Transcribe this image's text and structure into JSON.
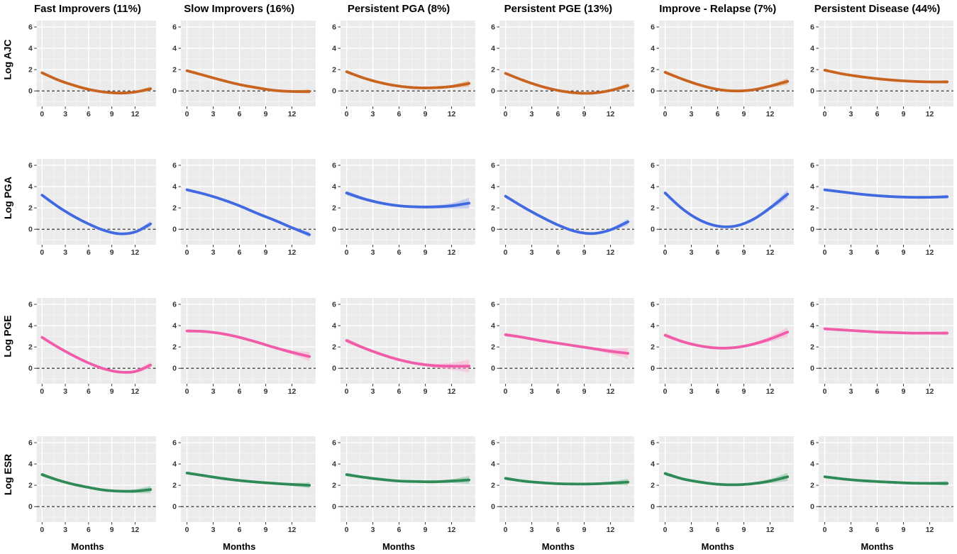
{
  "figure": {
    "background": "#ffffff",
    "panel_background": "#ebebeb",
    "gridline_major_color": "#ffffff",
    "gridline_minor_color": "#f5f5f5",
    "zero_line_color": "#1a1a1a",
    "tick_label_color": "#333333"
  },
  "chart_data": {
    "type": "line",
    "layout": "small-multiples 4 rows x 6 columns, smoothed trajectories with confidence bands",
    "x": [
      0,
      2,
      4,
      6,
      8,
      10,
      12,
      14
    ],
    "xlabel": "Months",
    "x_ticks": [
      0,
      3,
      6,
      9,
      12
    ],
    "y_ticks": [
      0,
      2,
      4,
      6
    ],
    "x_minor_ticks": [
      1.5,
      4.5,
      7.5,
      10.5,
      13.5
    ],
    "y_minor_ticks": [
      -1,
      1,
      3,
      5
    ],
    "x_range": [
      -0.7,
      14.7
    ],
    "y_range": [
      -1.45,
      6.6
    ],
    "reference_line_y": 0,
    "grid": true,
    "legend": "none",
    "columns": [
      "Fast Improvers (11%)",
      "Slow Improvers (16%)",
      "Persistent PGA (8%)",
      "Persistent PGE (13%)",
      "Improve - Relapse (7%)",
      "Persistent Disease (44%)"
    ],
    "rows": [
      {
        "label": "Log AJC",
        "color": "#c8641f",
        "band_color": "#e2a271",
        "panels": [
          {
            "column": "Fast Improvers (11%)",
            "values": [
              1.7,
              1.05,
              0.55,
              0.15,
              -0.1,
              -0.2,
              -0.1,
              0.2
            ],
            "ci_halfwidth": [
              0.12,
              0.08,
              0.07,
              0.07,
              0.07,
              0.08,
              0.1,
              0.22
            ]
          },
          {
            "column": "Slow Improvers (16%)",
            "values": [
              1.9,
              1.45,
              1.0,
              0.6,
              0.3,
              0.05,
              -0.05,
              -0.05
            ],
            "ci_halfwidth": [
              0.12,
              0.08,
              0.07,
              0.07,
              0.07,
              0.08,
              0.1,
              0.2
            ]
          },
          {
            "column": "Persistent PGA (8%)",
            "values": [
              1.8,
              1.2,
              0.75,
              0.45,
              0.3,
              0.3,
              0.42,
              0.7
            ],
            "ci_halfwidth": [
              0.15,
              0.1,
              0.08,
              0.08,
              0.08,
              0.1,
              0.14,
              0.3
            ]
          },
          {
            "column": "Persistent PGE (13%)",
            "values": [
              1.65,
              1.0,
              0.45,
              0.05,
              -0.18,
              -0.2,
              0.05,
              0.5
            ],
            "ci_halfwidth": [
              0.13,
              0.09,
              0.08,
              0.08,
              0.08,
              0.09,
              0.12,
              0.25
            ]
          },
          {
            "column": "Improve - Relapse (7%)",
            "values": [
              1.75,
              1.1,
              0.55,
              0.15,
              0.0,
              0.1,
              0.45,
              0.9
            ],
            "ci_halfwidth": [
              0.15,
              0.1,
              0.09,
              0.09,
              0.09,
              0.1,
              0.14,
              0.3
            ]
          },
          {
            "column": "Persistent Disease (44%)",
            "values": [
              1.95,
              1.6,
              1.35,
              1.15,
              1.0,
              0.9,
              0.85,
              0.85
            ],
            "ci_halfwidth": [
              0.1,
              0.07,
              0.06,
              0.06,
              0.06,
              0.07,
              0.08,
              0.15
            ]
          }
        ]
      },
      {
        "label": "Log PGA",
        "color": "#4169e1",
        "band_color": "#9db1ef",
        "panels": [
          {
            "column": "Fast Improvers (11%)",
            "values": [
              3.2,
              2.15,
              1.25,
              0.5,
              -0.1,
              -0.42,
              -0.25,
              0.5
            ],
            "ci_halfwidth": [
              0.15,
              0.1,
              0.09,
              0.09,
              0.09,
              0.1,
              0.13,
              0.28
            ]
          },
          {
            "column": "Slow Improvers (16%)",
            "values": [
              3.7,
              3.3,
              2.8,
              2.2,
              1.5,
              0.85,
              0.15,
              -0.5
            ],
            "ci_halfwidth": [
              0.13,
              0.09,
              0.08,
              0.08,
              0.08,
              0.09,
              0.12,
              0.25
            ]
          },
          {
            "column": "Persistent PGA (8%)",
            "values": [
              3.4,
              2.85,
              2.45,
              2.2,
              2.1,
              2.1,
              2.2,
              2.45
            ],
            "ci_halfwidth": [
              0.22,
              0.15,
              0.12,
              0.12,
              0.12,
              0.15,
              0.25,
              0.5
            ]
          },
          {
            "column": "Persistent PGE (13%)",
            "values": [
              3.1,
              2.1,
              1.2,
              0.4,
              -0.2,
              -0.4,
              -0.05,
              0.7
            ],
            "ci_halfwidth": [
              0.15,
              0.1,
              0.09,
              0.09,
              0.09,
              0.1,
              0.14,
              0.3
            ]
          },
          {
            "column": "Improve - Relapse (7%)",
            "values": [
              3.4,
              1.9,
              0.85,
              0.3,
              0.3,
              0.9,
              2.0,
              3.3
            ],
            "ci_halfwidth": [
              0.2,
              0.13,
              0.11,
              0.11,
              0.11,
              0.13,
              0.2,
              0.4
            ]
          },
          {
            "column": "Persistent Disease (44%)",
            "values": [
              3.7,
              3.5,
              3.3,
              3.15,
              3.05,
              3.0,
              3.0,
              3.05
            ],
            "ci_halfwidth": [
              0.1,
              0.07,
              0.06,
              0.06,
              0.06,
              0.07,
              0.09,
              0.18
            ]
          }
        ]
      },
      {
        "label": "Log PGE",
        "color": "#f05ca8",
        "band_color": "#f8b1d4",
        "panels": [
          {
            "column": "Fast Improvers (11%)",
            "values": [
              2.9,
              2.0,
              1.2,
              0.5,
              -0.05,
              -0.35,
              -0.3,
              0.3
            ],
            "ci_halfwidth": [
              0.15,
              0.1,
              0.09,
              0.09,
              0.09,
              0.1,
              0.14,
              0.3
            ]
          },
          {
            "column": "Slow Improvers (16%)",
            "values": [
              3.5,
              3.45,
              3.25,
              2.9,
              2.45,
              1.95,
              1.5,
              1.1
            ],
            "ci_halfwidth": [
              0.15,
              0.11,
              0.1,
              0.1,
              0.1,
              0.13,
              0.2,
              0.42
            ]
          },
          {
            "column": "Persistent PGA (8%)",
            "values": [
              2.6,
              1.9,
              1.3,
              0.8,
              0.45,
              0.25,
              0.2,
              0.2
            ],
            "ci_halfwidth": [
              0.22,
              0.15,
              0.12,
              0.12,
              0.13,
              0.18,
              0.33,
              0.6
            ]
          },
          {
            "column": "Persistent PGE (13%)",
            "values": [
              3.15,
              2.9,
              2.6,
              2.35,
              2.1,
              1.85,
              1.6,
              1.4
            ],
            "ci_halfwidth": [
              0.18,
              0.12,
              0.1,
              0.1,
              0.11,
              0.14,
              0.25,
              0.5
            ]
          },
          {
            "column": "Improve - Relapse (7%)",
            "values": [
              3.1,
              2.5,
              2.1,
              1.9,
              1.95,
              2.25,
              2.75,
              3.4
            ],
            "ci_halfwidth": [
              0.22,
              0.15,
              0.12,
              0.12,
              0.12,
              0.15,
              0.25,
              0.45
            ]
          },
          {
            "column": "Persistent Disease (44%)",
            "values": [
              3.7,
              3.6,
              3.5,
              3.4,
              3.35,
              3.3,
              3.3,
              3.3
            ],
            "ci_halfwidth": [
              0.12,
              0.08,
              0.07,
              0.07,
              0.07,
              0.08,
              0.1,
              0.2
            ]
          }
        ]
      },
      {
        "label": "Log ESR",
        "color": "#2e8b57",
        "band_color": "#8cc3a4",
        "panels": [
          {
            "column": "Fast Improvers (11%)",
            "values": [
              3.0,
              2.5,
              2.1,
              1.8,
              1.55,
              1.45,
              1.45,
              1.6
            ],
            "ci_halfwidth": [
              0.18,
              0.12,
              0.1,
              0.1,
              0.1,
              0.12,
              0.18,
              0.35
            ]
          },
          {
            "column": "Slow Improvers (16%)",
            "values": [
              3.15,
              2.9,
              2.65,
              2.45,
              2.3,
              2.18,
              2.08,
              2.0
            ],
            "ci_halfwidth": [
              0.14,
              0.1,
              0.08,
              0.08,
              0.08,
              0.1,
              0.14,
              0.28
            ]
          },
          {
            "column": "Persistent PGA (8%)",
            "values": [
              3.0,
              2.75,
              2.55,
              2.4,
              2.35,
              2.33,
              2.4,
              2.5
            ],
            "ci_halfwidth": [
              0.16,
              0.11,
              0.09,
              0.09,
              0.09,
              0.12,
              0.18,
              0.38
            ]
          },
          {
            "column": "Persistent PGE (13%)",
            "values": [
              2.65,
              2.4,
              2.25,
              2.15,
              2.12,
              2.13,
              2.2,
              2.3
            ],
            "ci_halfwidth": [
              0.15,
              0.1,
              0.09,
              0.09,
              0.09,
              0.11,
              0.16,
              0.32
            ]
          },
          {
            "column": "Improve - Relapse (7%)",
            "values": [
              3.1,
              2.6,
              2.3,
              2.1,
              2.05,
              2.15,
              2.4,
              2.8
            ],
            "ci_halfwidth": [
              0.18,
              0.12,
              0.1,
              0.1,
              0.1,
              0.13,
              0.2,
              0.4
            ]
          },
          {
            "column": "Persistent Disease (44%)",
            "values": [
              2.8,
              2.6,
              2.45,
              2.35,
              2.27,
              2.2,
              2.18,
              2.18
            ],
            "ci_halfwidth": [
              0.12,
              0.08,
              0.07,
              0.07,
              0.07,
              0.08,
              0.11,
              0.22
            ]
          }
        ]
      }
    ]
  }
}
